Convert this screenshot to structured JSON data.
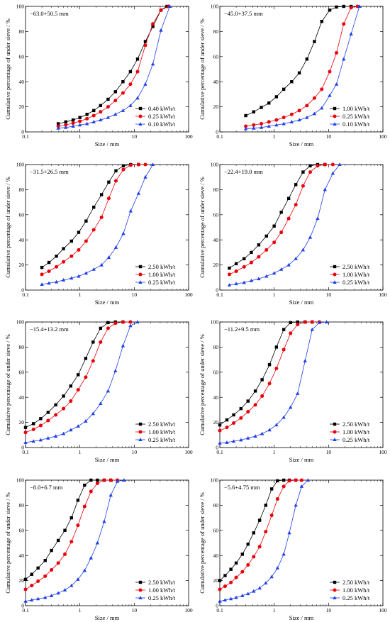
{
  "colors": {
    "black": "#000000",
    "red": "#e8000b",
    "blue": "#1f3fe8"
  },
  "series_styles": [
    {
      "marker": "square",
      "color": "#000000"
    },
    {
      "marker": "circle",
      "color": "#e8000b"
    },
    {
      "marker": "triangle",
      "color": "#1f3fe8"
    }
  ],
  "chart_data": [
    {
      "type": "line",
      "annotation": "−63.0+50.5 mm",
      "xlabel": "Size / mm",
      "ylabel": "Cumulative percentage of under sieve / %",
      "xscale": "log",
      "xlim": [
        0.1,
        100
      ],
      "ylim": [
        0,
        100
      ],
      "xticks": [
        "0.1",
        "1",
        "10",
        "100"
      ],
      "yticks": [
        "0",
        "20",
        "40",
        "60",
        "80",
        "100"
      ],
      "legend_position": "lower-right",
      "series": [
        {
          "name": "0.40 kWh/t",
          "x": [
            0.4,
            0.55,
            0.75,
            1.0,
            1.35,
            1.8,
            2.4,
            3.3,
            4.5,
            6.2,
            8.5,
            11.5,
            16,
            22,
            31,
            40
          ],
          "y": [
            6.5,
            8,
            9.5,
            11.5,
            14,
            17,
            21,
            26,
            32,
            40,
            48,
            58,
            72,
            84,
            97,
            100
          ]
        },
        {
          "name": "0.25 kWh/t",
          "x": [
            0.4,
            0.55,
            0.75,
            1.0,
            1.35,
            1.8,
            2.4,
            3.3,
            4.5,
            6.2,
            8.5,
            11.5,
            16,
            22,
            31,
            43
          ],
          "y": [
            4.5,
            5.5,
            7,
            8.5,
            10.5,
            13,
            16,
            20,
            25,
            31,
            38,
            48,
            69,
            86,
            97,
            100
          ]
        },
        {
          "name": "0.10 kWh/t",
          "x": [
            0.4,
            0.55,
            0.75,
            1.0,
            1.35,
            1.8,
            2.4,
            3.3,
            4.5,
            6.2,
            8.5,
            11.5,
            16,
            22,
            31,
            45
          ],
          "y": [
            3,
            3.5,
            4.5,
            5.5,
            6.5,
            8,
            9.5,
            11.5,
            14,
            17,
            21,
            27,
            38,
            54,
            81,
            100
          ]
        }
      ]
    },
    {
      "type": "line",
      "annotation": "−45.0+37.5 mm",
      "xlabel": "Size / mm",
      "ylabel": "Cumulative percentage of under sieve / %",
      "xscale": "log",
      "xlim": [
        0.1,
        100
      ],
      "ylim": [
        0,
        100
      ],
      "xticks": [
        "0.1",
        "1",
        "10",
        "100"
      ],
      "yticks": [
        "0",
        "20",
        "40",
        "60",
        "80",
        "100"
      ],
      "legend_position": "lower-right",
      "series": [
        {
          "name": "1.00 kWh/t",
          "x": [
            0.3,
            0.42,
            0.58,
            0.8,
            1.1,
            1.5,
            2.1,
            2.9,
            4.0,
            5.5,
            7.5,
            10.5,
            14,
            19,
            26
          ],
          "y": [
            13,
            16,
            19.5,
            23,
            28,
            34,
            40,
            47,
            58,
            72,
            88,
            97,
            99.5,
            100,
            100
          ]
        },
        {
          "name": "0.25 kWh/t",
          "x": [
            0.3,
            0.42,
            0.58,
            0.8,
            1.1,
            1.5,
            2.1,
            2.9,
            4.0,
            5.5,
            7.5,
            10.5,
            14,
            19,
            26,
            34
          ],
          "y": [
            4.5,
            5.5,
            6.5,
            8,
            9.5,
            11.5,
            14,
            17,
            21,
            27,
            34,
            48,
            63,
            86,
            99,
            100
          ]
        },
        {
          "name": "0.10 kWh/t",
          "x": [
            0.3,
            0.42,
            0.58,
            0.8,
            1.1,
            1.5,
            2.1,
            2.9,
            4.0,
            5.5,
            7.5,
            10.5,
            14,
            19,
            26,
            37
          ],
          "y": [
            2.5,
            3,
            3.5,
            4.5,
            5.5,
            6.5,
            8,
            9.5,
            11.5,
            14.5,
            19,
            29,
            38,
            58,
            78,
            100
          ]
        }
      ]
    },
    {
      "type": "line",
      "annotation": "−31.5+26.5 mm",
      "xlabel": "Size / mm",
      "ylabel": "Cumulative percentage of under sieve / %",
      "xscale": "log",
      "xlim": [
        0.1,
        100
      ],
      "ylim": [
        0,
        100
      ],
      "xticks": [
        "0.1",
        "1",
        "10",
        "100"
      ],
      "yticks": [
        "0",
        "20",
        "40",
        "60",
        "80",
        "100"
      ],
      "legend_position": "lower-right",
      "series": [
        {
          "name": "2.50 kWh/t",
          "x": [
            0.2,
            0.27,
            0.37,
            0.5,
            0.7,
            0.95,
            1.3,
            1.8,
            2.5,
            3.4,
            4.6,
            6.3,
            8.6,
            12
          ],
          "y": [
            18,
            22,
            27,
            33,
            39,
            46,
            55,
            66,
            76,
            86,
            95,
            99,
            100,
            100
          ]
        },
        {
          "name": "1.00 kWh/t",
          "x": [
            0.2,
            0.27,
            0.37,
            0.5,
            0.7,
            0.95,
            1.3,
            1.8,
            2.5,
            3.4,
            4.6,
            6.3,
            8.6,
            12,
            16
          ],
          "y": [
            12.5,
            15,
            18.5,
            22.5,
            27,
            32,
            39,
            48,
            58,
            73,
            87,
            96,
            99.5,
            100,
            100
          ]
        },
        {
          "name": "0.25 kWh/t",
          "x": [
            0.2,
            0.27,
            0.37,
            0.5,
            0.7,
            0.95,
            1.3,
            1.8,
            2.5,
            3.4,
            4.6,
            6.3,
            8.6,
            12,
            16,
            22
          ],
          "y": [
            4.5,
            5.5,
            6.5,
            8,
            9.5,
            11,
            13.5,
            16.5,
            20,
            26,
            34,
            45,
            63,
            77,
            90,
            100
          ]
        }
      ]
    },
    {
      "type": "line",
      "annotation": "−22.4+19.0 mm",
      "xlabel": "Size / mm",
      "ylabel": "Cumulative percentage of under sieve / %",
      "xscale": "log",
      "xlim": [
        0.1,
        100
      ],
      "ylim": [
        0,
        100
      ],
      "xticks": [
        "0.1",
        "1",
        "10",
        "100"
      ],
      "yticks": [
        "0",
        "20",
        "40",
        "60",
        "80",
        "100"
      ],
      "legend_position": "lower-right",
      "series": [
        {
          "name": "2.50 kWh/t",
          "x": [
            0.15,
            0.2,
            0.28,
            0.38,
            0.52,
            0.72,
            1.0,
            1.35,
            1.85,
            2.5,
            3.4,
            4.6,
            6.3,
            8.6
          ],
          "y": [
            17.5,
            21,
            25,
            30,
            36,
            43,
            51,
            62,
            73,
            84,
            94,
            99,
            100,
            100
          ]
        },
        {
          "name": "1.00 kWh/t",
          "x": [
            0.15,
            0.2,
            0.28,
            0.38,
            0.52,
            0.72,
            1.0,
            1.35,
            1.85,
            2.5,
            3.4,
            4.6,
            6.3,
            8.6,
            12
          ],
          "y": [
            12.5,
            15,
            18.5,
            22,
            26.5,
            32,
            38,
            46,
            57,
            68,
            83,
            94,
            99,
            100,
            100
          ]
        },
        {
          "name": "0.25 kWh/t",
          "x": [
            0.15,
            0.2,
            0.28,
            0.38,
            0.52,
            0.72,
            1.0,
            1.35,
            1.85,
            2.5,
            3.4,
            4.6,
            6.3,
            8.6,
            12,
            16
          ],
          "y": [
            4,
            5,
            6,
            7.5,
            9,
            11,
            13.5,
            16.5,
            20,
            25,
            32,
            42,
            57,
            80,
            93,
            100
          ]
        }
      ]
    },
    {
      "type": "line",
      "annotation": "−15.4+13.2 mm",
      "xlabel": "Size / mm",
      "ylabel": "Cumulative percentage of under sieve / %",
      "xscale": "log",
      "xlim": [
        0.1,
        100
      ],
      "ylim": [
        0,
        100
      ],
      "xticks": [
        "0.1",
        "1",
        "10",
        "100"
      ],
      "yticks": [
        "0",
        "20",
        "40",
        "60",
        "80",
        "100"
      ],
      "legend_position": "lower-right",
      "series": [
        {
          "name": "2.50 kWh/t",
          "x": [
            0.1,
            0.14,
            0.19,
            0.26,
            0.36,
            0.5,
            0.68,
            0.93,
            1.28,
            1.75,
            2.4,
            3.3,
            4.5,
            6.2
          ],
          "y": [
            16,
            19,
            23,
            28,
            34,
            41,
            49,
            58,
            71,
            84,
            95,
            99.5,
            100,
            100
          ]
        },
        {
          "name": "1.00 kWh/t",
          "x": [
            0.1,
            0.14,
            0.19,
            0.26,
            0.36,
            0.5,
            0.68,
            0.93,
            1.28,
            1.75,
            2.4,
            3.3,
            4.5,
            6.2,
            8.5
          ],
          "y": [
            12,
            14.5,
            17.5,
            21.5,
            26,
            31,
            37,
            46,
            56,
            69,
            84,
            95,
            99,
            100,
            100
          ]
        },
        {
          "name": "0.25 kWh/t",
          "x": [
            0.1,
            0.14,
            0.19,
            0.26,
            0.36,
            0.5,
            0.68,
            0.93,
            1.28,
            1.75,
            2.4,
            3.3,
            4.5,
            6.2,
            8.5,
            11.5
          ],
          "y": [
            4,
            5,
            6,
            7.5,
            9,
            11,
            14,
            17,
            21,
            27,
            35,
            45,
            61,
            81,
            97,
            100
          ]
        }
      ]
    },
    {
      "type": "line",
      "annotation": "−11.2+9.5 mm",
      "xlabel": "Size / mm",
      "ylabel": "Cumulative percentage of under sieve / %",
      "xscale": "log",
      "xlim": [
        0.1,
        100
      ],
      "ylim": [
        0,
        100
      ],
      "xticks": [
        "0.1",
        "1",
        "10",
        "100"
      ],
      "yticks": [
        "0",
        "20",
        "40",
        "60",
        "80",
        "100"
      ],
      "legend_position": "lower-right",
      "series": [
        {
          "name": "2.50 kWh/t",
          "x": [
            0.1,
            0.135,
            0.18,
            0.245,
            0.33,
            0.45,
            0.6,
            0.82,
            1.1,
            1.5,
            2.0,
            2.7,
            3.7,
            5.0
          ],
          "y": [
            18,
            22,
            26,
            31,
            37,
            45,
            54,
            66,
            80,
            94,
            99.5,
            100,
            100,
            100
          ]
        },
        {
          "name": "1.00 kWh/t",
          "x": [
            0.1,
            0.135,
            0.18,
            0.245,
            0.33,
            0.45,
            0.6,
            0.82,
            1.1,
            1.5,
            2.0,
            2.7,
            3.7,
            5.0,
            6.8
          ],
          "y": [
            13.5,
            16,
            19.5,
            23.5,
            28.5,
            34,
            41,
            51,
            63,
            78,
            91,
            98,
            100,
            100,
            100
          ]
        },
        {
          "name": "0.25 kWh/t",
          "x": [
            0.1,
            0.135,
            0.18,
            0.245,
            0.33,
            0.45,
            0.6,
            0.82,
            1.1,
            1.5,
            2.0,
            2.7,
            3.7,
            5.0,
            6.8,
            9.2
          ],
          "y": [
            3.5,
            4,
            5,
            6,
            7.5,
            9,
            11,
            14,
            18,
            24,
            32,
            43,
            69,
            94,
            99.5,
            100
          ]
        }
      ]
    },
    {
      "type": "line",
      "annotation": "−8.0+6.7 mm",
      "xlabel": "Size / mm",
      "ylabel": "Cumulative percentage of under sieve / %",
      "xscale": "log",
      "xlim": [
        0.1,
        100
      ],
      "ylim": [
        0,
        100
      ],
      "xticks": [
        "0.1",
        "1",
        "10",
        "100"
      ],
      "yticks": [
        "0",
        "20",
        "40",
        "60",
        "80",
        "100"
      ],
      "legend_position": "lower-right",
      "series": [
        {
          "name": "2.50 kWh/t",
          "x": [
            0.1,
            0.13,
            0.17,
            0.23,
            0.3,
            0.4,
            0.53,
            0.7,
            0.92,
            1.22,
            1.6,
            2.1,
            2.8,
            3.7
          ],
          "y": [
            21,
            25,
            30,
            36,
            44,
            52,
            60,
            70,
            84,
            96,
            100,
            100,
            100,
            100
          ]
        },
        {
          "name": "1.00 kWh/t",
          "x": [
            0.1,
            0.13,
            0.17,
            0.23,
            0.3,
            0.4,
            0.53,
            0.7,
            0.92,
            1.22,
            1.6,
            2.1,
            2.8,
            3.7,
            4.9
          ],
          "y": [
            13,
            16,
            19.5,
            23.5,
            28.5,
            34,
            41,
            51,
            64,
            79,
            91,
            97.5,
            100,
            100,
            100
          ]
        },
        {
          "name": "0.25 kWh/t",
          "x": [
            0.1,
            0.13,
            0.17,
            0.23,
            0.3,
            0.4,
            0.53,
            0.7,
            0.92,
            1.22,
            1.6,
            2.1,
            2.8,
            3.7,
            4.9,
            6.5
          ],
          "y": [
            3.5,
            4.5,
            5.5,
            6.5,
            8,
            10,
            12.5,
            16,
            21,
            28,
            38,
            50,
            67,
            88,
            99,
            100
          ]
        }
      ]
    },
    {
      "type": "line",
      "annotation": "−5.6+4.75 mm",
      "xlabel": "Size / mm",
      "ylabel": "Cumulative percentage of under sieve / %",
      "xscale": "log",
      "xlim": [
        0.1,
        100
      ],
      "ylim": [
        0,
        100
      ],
      "xticks": [
        "0.1",
        "1",
        "10",
        "100"
      ],
      "yticks": [
        "0",
        "20",
        "40",
        "60",
        "80",
        "100"
      ],
      "legend_position": "lower-right",
      "series": [
        {
          "name": "2.50 kWh/t",
          "x": [
            0.1,
            0.125,
            0.16,
            0.2,
            0.26,
            0.33,
            0.42,
            0.54,
            0.7,
            0.9,
            1.15,
            1.5,
            1.9,
            2.5
          ],
          "y": [
            20,
            24,
            29,
            34,
            41,
            49,
            58,
            68,
            80,
            93,
            99.5,
            100,
            100,
            100
          ]
        },
        {
          "name": "1.00 kWh/t",
          "x": [
            0.1,
            0.125,
            0.16,
            0.2,
            0.26,
            0.33,
            0.42,
            0.54,
            0.7,
            0.9,
            1.15,
            1.5,
            1.9,
            2.5,
            3.2
          ],
          "y": [
            13,
            15.5,
            18.5,
            22.5,
            27,
            32.5,
            39,
            47,
            59,
            72,
            85,
            95,
            99.5,
            100,
            100
          ]
        },
        {
          "name": "0.25 kWh/t",
          "x": [
            0.1,
            0.125,
            0.16,
            0.2,
            0.26,
            0.33,
            0.42,
            0.54,
            0.7,
            0.9,
            1.15,
            1.5,
            1.9,
            2.5,
            3.2,
            4.2
          ],
          "y": [
            3.5,
            4.5,
            5.5,
            6.5,
            8,
            9.5,
            11.5,
            14,
            18,
            23,
            30,
            41,
            58,
            80,
            95,
            100
          ]
        }
      ]
    }
  ]
}
